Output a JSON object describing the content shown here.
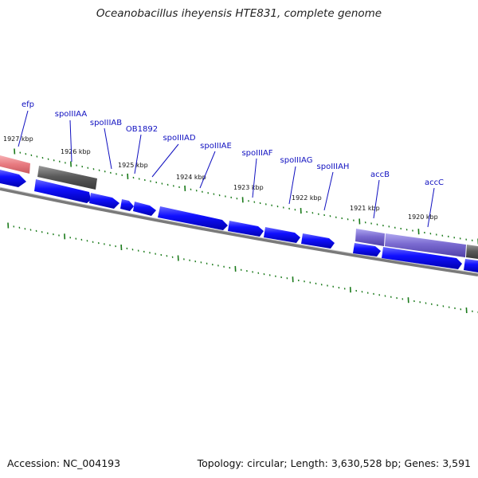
{
  "title": "Oceanobacillus iheyensis HTE831, complete genome",
  "footer": {
    "accession": "Accession: NC_004193",
    "summary": "Topology: circular; Length: 3,630,528 bp; Genes: 3,591"
  },
  "kbp_ticks": [
    "1927 kbp",
    "1926 kbp",
    "1925 kbp",
    "1924 kbp",
    "1923 kbp",
    "1922 kbp",
    "1921 kbp",
    "1920 kbp"
  ],
  "gene_labels": [
    "efp",
    "spoIIIAA",
    "spoIIIAB",
    "OB1892",
    "spoIIIAD",
    "spoIIIAE",
    "spoIIIAF",
    "spoIIIAG",
    "spoIIIAH",
    "accB",
    "accC"
  ],
  "colors": {
    "gene_arrow": "#0000ee",
    "gene_highlight": "#e87a80",
    "gene_gray": "#606060",
    "gene_purple": "#7a6ad0",
    "tick_green": "#1a7a1a",
    "backbone": "#808080",
    "label": "#1010c0"
  }
}
